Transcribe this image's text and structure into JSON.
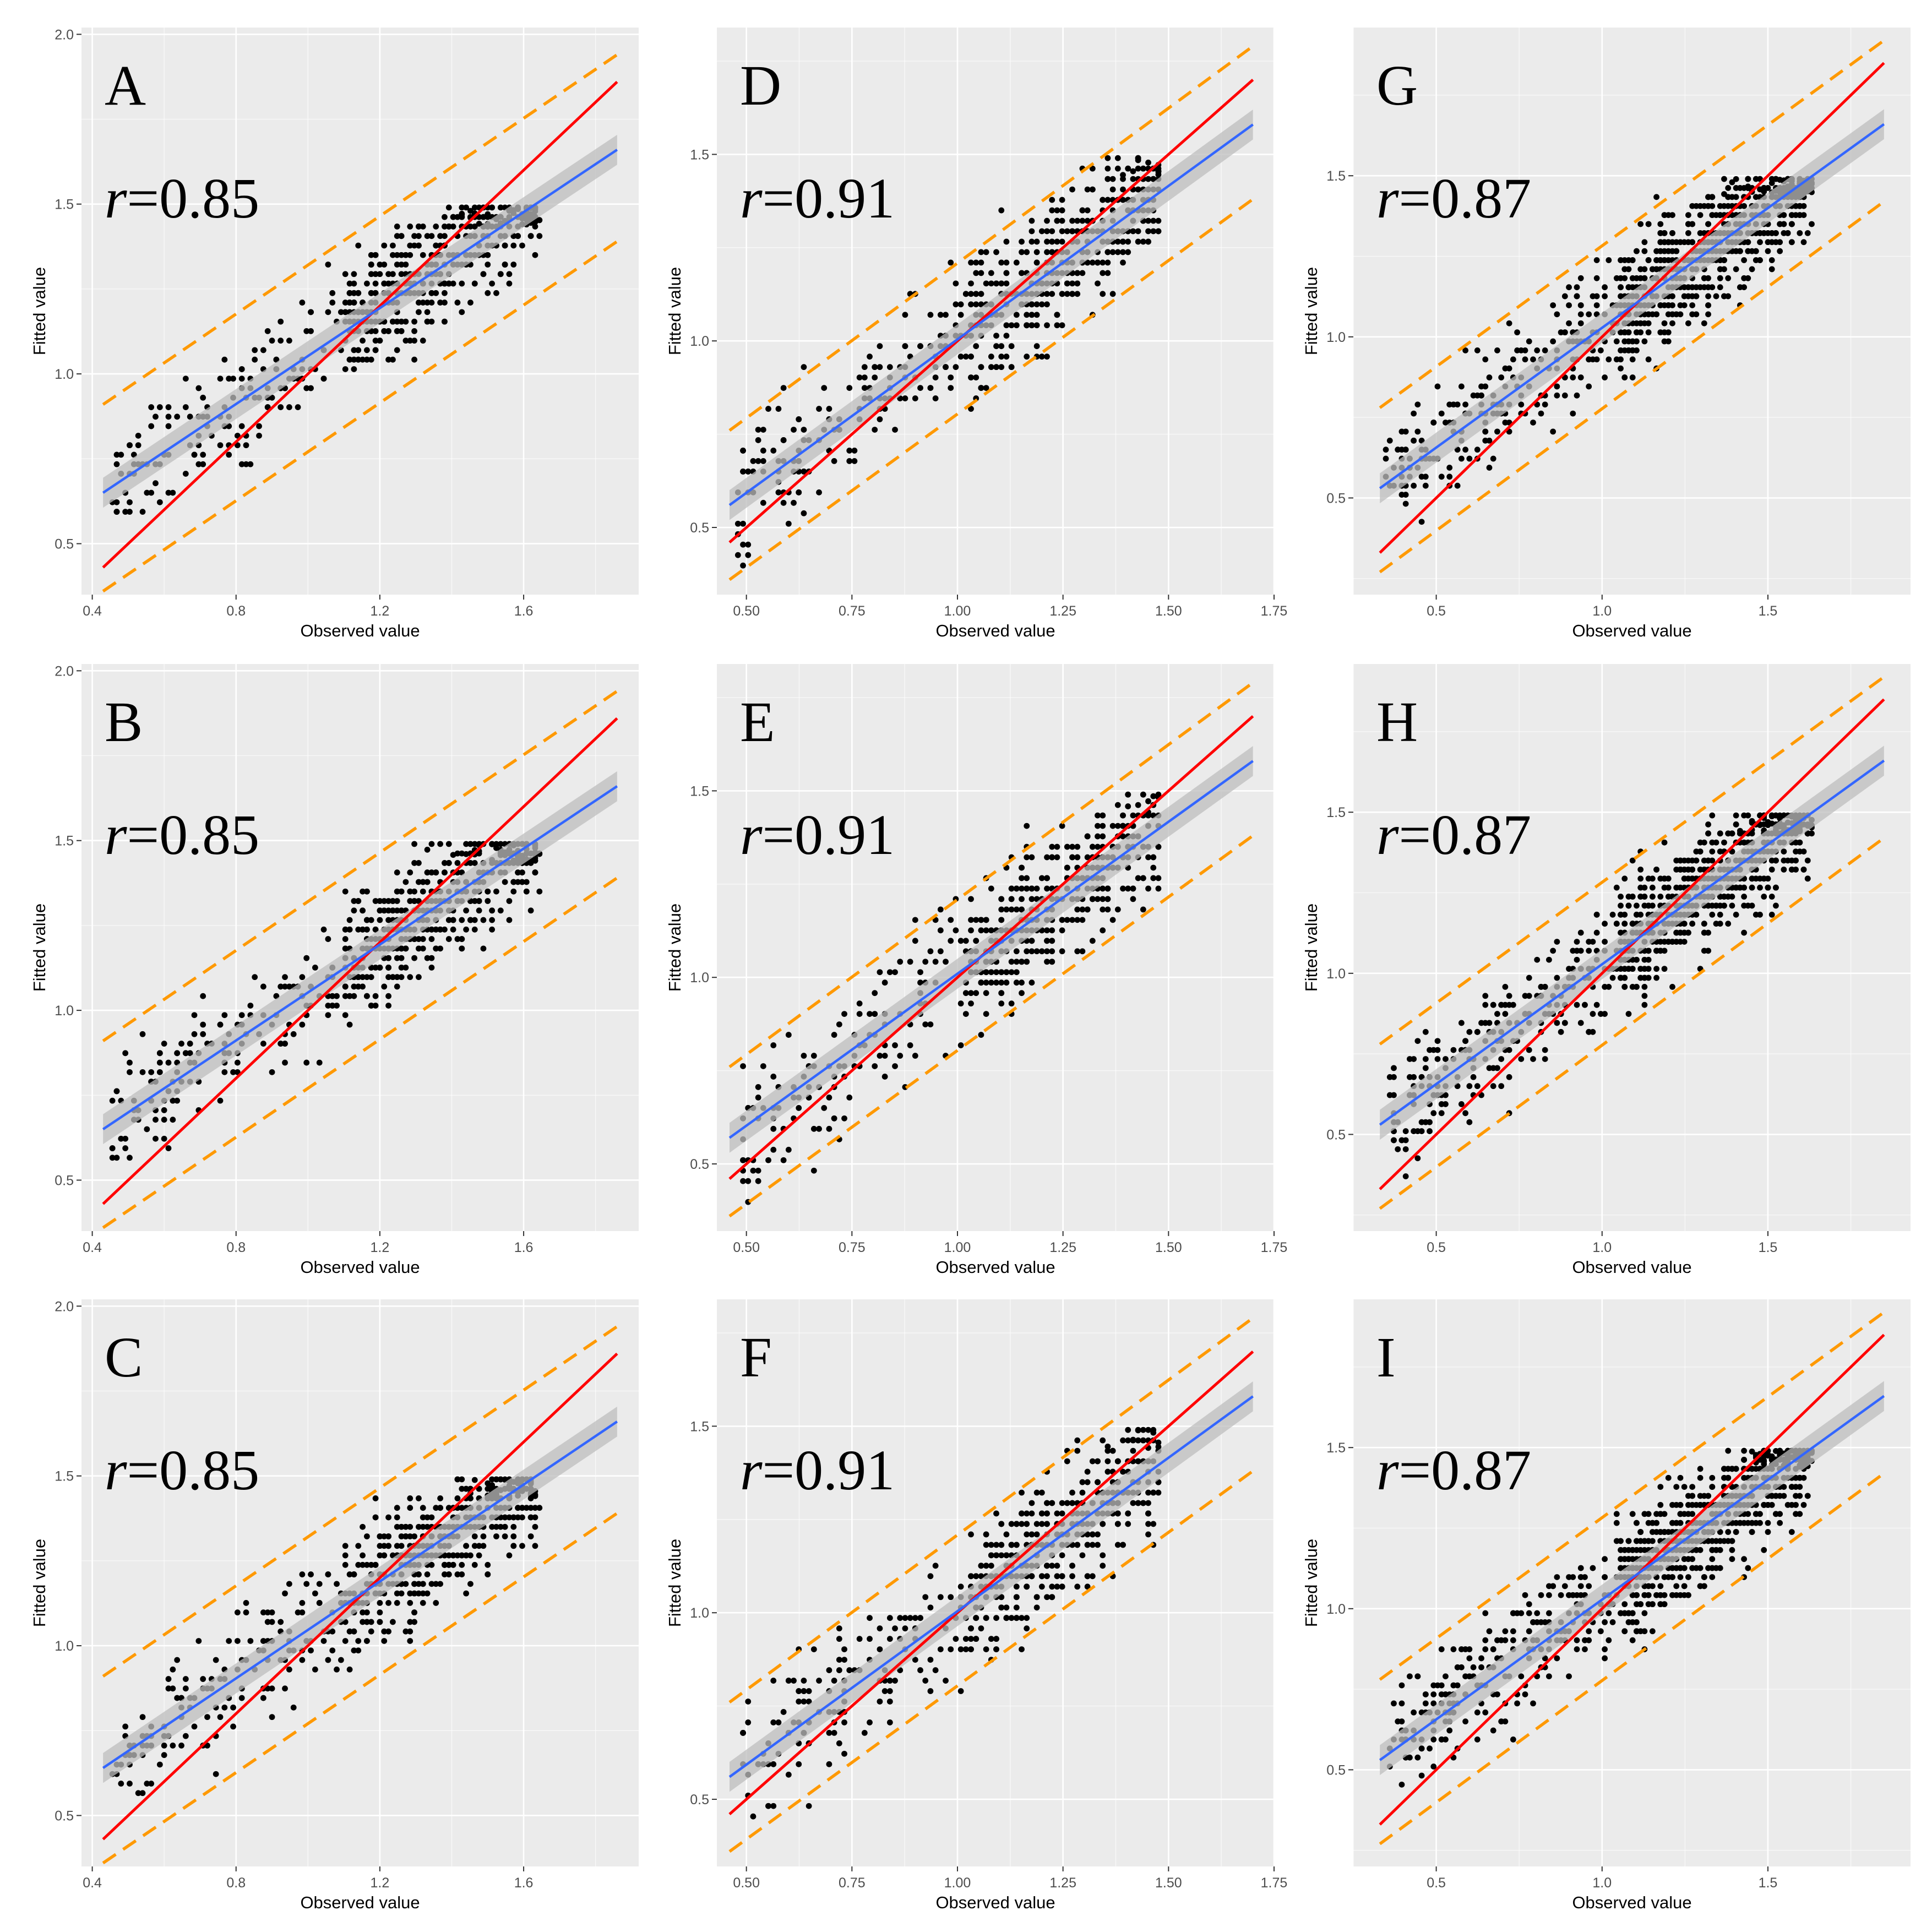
{
  "figure": {
    "panel_background": "#ebebeb",
    "gridline_color": "#ffffff",
    "point_color": "#000000",
    "identity_line_color": "#ff0000",
    "fit_line_color": "#3366ff",
    "confidence_band_color": "#bdbdbd",
    "prediction_line_color": "#ff9900"
  },
  "chart_data": [
    {
      "panel": "A",
      "r_value": "0.85",
      "type": "scatter",
      "xlabel": "Observed value",
      "ylabel": "Fitted value",
      "xlim": [
        0.37,
        1.92
      ],
      "ylim": [
        0.35,
        2.02
      ],
      "xticks": [
        0.4,
        0.8,
        1.2,
        1.6
      ],
      "xtick_labels": [
        "0.4",
        "0.8",
        "1.2",
        "1.6"
      ],
      "yticks": [
        0.5,
        1.0,
        1.5,
        2.0
      ],
      "ytick_labels": [
        "0.5",
        "1.0",
        "1.5",
        "2.0"
      ],
      "fit_line": [
        [
          0.43,
          0.65
        ],
        [
          1.86,
          1.66
        ]
      ],
      "identity_line": [
        [
          0.43,
          0.43
        ],
        [
          1.86,
          1.86
        ]
      ],
      "prediction_upper": [
        [
          0.43,
          0.91
        ],
        [
          1.86,
          1.94
        ]
      ],
      "prediction_lower": [
        [
          0.43,
          0.36
        ],
        [
          1.86,
          1.39
        ]
      ],
      "n_points": 620,
      "seed": 11
    },
    {
      "panel": "B",
      "r_value": "0.85",
      "type": "scatter",
      "xlabel": "Observed value",
      "ylabel": "Fitted value",
      "xlim": [
        0.37,
        1.92
      ],
      "ylim": [
        0.35,
        2.02
      ],
      "xticks": [
        0.4,
        0.8,
        1.2,
        1.6
      ],
      "xtick_labels": [
        "0.4",
        "0.8",
        "1.2",
        "1.6"
      ],
      "yticks": [
        0.5,
        1.0,
        1.5,
        2.0
      ],
      "ytick_labels": [
        "0.5",
        "1.0",
        "1.5",
        "2.0"
      ],
      "fit_line": [
        [
          0.43,
          0.65
        ],
        [
          1.86,
          1.66
        ]
      ],
      "identity_line": [
        [
          0.43,
          0.43
        ],
        [
          1.86,
          1.86
        ]
      ],
      "prediction_upper": [
        [
          0.43,
          0.91
        ],
        [
          1.86,
          1.94
        ]
      ],
      "prediction_lower": [
        [
          0.43,
          0.36
        ],
        [
          1.86,
          1.39
        ]
      ],
      "n_points": 620,
      "seed": 23
    },
    {
      "panel": "C",
      "r_value": "0.85",
      "type": "scatter",
      "xlabel": "Observed value",
      "ylabel": "Fitted value",
      "xlim": [
        0.37,
        1.92
      ],
      "ylim": [
        0.35,
        2.02
      ],
      "xticks": [
        0.4,
        0.8,
        1.2,
        1.6
      ],
      "xtick_labels": [
        "0.4",
        "0.8",
        "1.2",
        "1.6"
      ],
      "yticks": [
        0.5,
        1.0,
        1.5,
        2.0
      ],
      "ytick_labels": [
        "0.5",
        "1.0",
        "1.5",
        "2.0"
      ],
      "fit_line": [
        [
          0.43,
          0.64
        ],
        [
          1.86,
          1.66
        ]
      ],
      "identity_line": [
        [
          0.43,
          0.43
        ],
        [
          1.86,
          1.86
        ]
      ],
      "prediction_upper": [
        [
          0.43,
          0.91
        ],
        [
          1.86,
          1.94
        ]
      ],
      "prediction_lower": [
        [
          0.43,
          0.36
        ],
        [
          1.86,
          1.39
        ]
      ],
      "n_points": 620,
      "seed": 37
    },
    {
      "panel": "D",
      "r_value": "0.91",
      "type": "scatter",
      "xlabel": "Observed value",
      "ylabel": "Fitted value",
      "xlim": [
        0.43,
        1.75
      ],
      "ylim": [
        0.32,
        1.84
      ],
      "xticks": [
        0.5,
        0.75,
        1.0,
        1.25,
        1.5,
        1.75
      ],
      "xtick_labels": [
        "0.50",
        "0.75",
        "1.00",
        "1.25",
        "1.50",
        "1.75"
      ],
      "yticks": [
        0.5,
        1.0,
        1.5
      ],
      "ytick_labels": [
        "0.5",
        "1.0",
        "1.5"
      ],
      "fit_line": [
        [
          0.46,
          0.56
        ],
        [
          1.7,
          1.58
        ]
      ],
      "identity_line": [
        [
          0.46,
          0.46
        ],
        [
          1.7,
          1.7
        ]
      ],
      "prediction_upper": [
        [
          0.46,
          0.76
        ],
        [
          1.7,
          1.79
        ]
      ],
      "prediction_lower": [
        [
          0.46,
          0.36
        ],
        [
          1.7,
          1.38
        ]
      ],
      "n_points": 560,
      "seed": 41
    },
    {
      "panel": "E",
      "r_value": "0.91",
      "type": "scatter",
      "xlabel": "Observed value",
      "ylabel": "Fitted value",
      "xlim": [
        0.43,
        1.75
      ],
      "ylim": [
        0.32,
        1.84
      ],
      "xticks": [
        0.5,
        0.75,
        1.0,
        1.25,
        1.5,
        1.75
      ],
      "xtick_labels": [
        "0.50",
        "0.75",
        "1.00",
        "1.25",
        "1.50",
        "1.75"
      ],
      "yticks": [
        0.5,
        1.0,
        1.5
      ],
      "ytick_labels": [
        "0.5",
        "1.0",
        "1.5"
      ],
      "fit_line": [
        [
          0.46,
          0.57
        ],
        [
          1.7,
          1.58
        ]
      ],
      "identity_line": [
        [
          0.46,
          0.46
        ],
        [
          1.7,
          1.7
        ]
      ],
      "prediction_upper": [
        [
          0.46,
          0.76
        ],
        [
          1.7,
          1.79
        ]
      ],
      "prediction_lower": [
        [
          0.46,
          0.36
        ],
        [
          1.7,
          1.38
        ]
      ],
      "n_points": 560,
      "seed": 53
    },
    {
      "panel": "F",
      "r_value": "0.91",
      "type": "scatter",
      "xlabel": "Observed value",
      "ylabel": "Fitted value",
      "xlim": [
        0.43,
        1.75
      ],
      "ylim": [
        0.32,
        1.84
      ],
      "xticks": [
        0.5,
        0.75,
        1.0,
        1.25,
        1.5,
        1.75
      ],
      "xtick_labels": [
        "0.50",
        "0.75",
        "1.00",
        "1.25",
        "1.50",
        "1.75"
      ],
      "yticks": [
        0.5,
        1.0,
        1.5
      ],
      "ytick_labels": [
        "0.5",
        "1.0",
        "1.5"
      ],
      "fit_line": [
        [
          0.46,
          0.56
        ],
        [
          1.7,
          1.58
        ]
      ],
      "identity_line": [
        [
          0.46,
          0.46
        ],
        [
          1.7,
          1.7
        ]
      ],
      "prediction_upper": [
        [
          0.46,
          0.76
        ],
        [
          1.7,
          1.79
        ]
      ],
      "prediction_lower": [
        [
          0.46,
          0.36
        ],
        [
          1.7,
          1.38
        ]
      ],
      "n_points": 560,
      "seed": 67
    },
    {
      "panel": "G",
      "r_value": "0.87",
      "type": "scatter",
      "xlabel": "Observed value",
      "ylabel": "Fitted value",
      "xlim": [
        0.25,
        1.93
      ],
      "ylim": [
        0.2,
        1.96
      ],
      "xticks": [
        0.5,
        1.0,
        1.5
      ],
      "xtick_labels": [
        "0.5",
        "1.0",
        "1.5"
      ],
      "yticks": [
        0.5,
        1.0,
        1.5
      ],
      "ytick_labels": [
        "0.5",
        "1.0",
        "1.5"
      ],
      "fit_line": [
        [
          0.33,
          0.53
        ],
        [
          1.85,
          1.66
        ]
      ],
      "identity_line": [
        [
          0.33,
          0.33
        ],
        [
          1.85,
          1.85
        ]
      ],
      "prediction_upper": [
        [
          0.33,
          0.78
        ],
        [
          1.85,
          1.92
        ]
      ],
      "prediction_lower": [
        [
          0.33,
          0.27
        ],
        [
          1.85,
          1.42
        ]
      ],
      "n_points": 900,
      "seed": 71
    },
    {
      "panel": "H",
      "r_value": "0.87",
      "type": "scatter",
      "xlabel": "Observed value",
      "ylabel": "Fitted value",
      "xlim": [
        0.25,
        1.93
      ],
      "ylim": [
        0.2,
        1.96
      ],
      "xticks": [
        0.5,
        1.0,
        1.5
      ],
      "xtick_labels": [
        "0.5",
        "1.0",
        "1.5"
      ],
      "yticks": [
        0.5,
        1.0,
        1.5
      ],
      "ytick_labels": [
        "0.5",
        "1.0",
        "1.5"
      ],
      "fit_line": [
        [
          0.33,
          0.53
        ],
        [
          1.85,
          1.66
        ]
      ],
      "identity_line": [
        [
          0.33,
          0.33
        ],
        [
          1.85,
          1.85
        ]
      ],
      "prediction_upper": [
        [
          0.33,
          0.78
        ],
        [
          1.85,
          1.92
        ]
      ],
      "prediction_lower": [
        [
          0.33,
          0.27
        ],
        [
          1.85,
          1.42
        ]
      ],
      "n_points": 900,
      "seed": 83
    },
    {
      "panel": "I",
      "r_value": "0.87",
      "type": "scatter",
      "xlabel": "Observed value",
      "ylabel": "Fitted value",
      "xlim": [
        0.25,
        1.93
      ],
      "ylim": [
        0.2,
        1.96
      ],
      "xticks": [
        0.5,
        1.0,
        1.5
      ],
      "xtick_labels": [
        "0.5",
        "1.0",
        "1.5"
      ],
      "yticks": [
        0.5,
        1.0,
        1.5
      ],
      "ytick_labels": [
        "0.5",
        "1.0",
        "1.5"
      ],
      "fit_line": [
        [
          0.33,
          0.53
        ],
        [
          1.85,
          1.66
        ]
      ],
      "identity_line": [
        [
          0.33,
          0.33
        ],
        [
          1.85,
          1.85
        ]
      ],
      "prediction_upper": [
        [
          0.33,
          0.78
        ],
        [
          1.85,
          1.92
        ]
      ],
      "prediction_lower": [
        [
          0.33,
          0.27
        ],
        [
          1.85,
          1.42
        ]
      ],
      "n_points": 900,
      "seed": 97
    }
  ]
}
